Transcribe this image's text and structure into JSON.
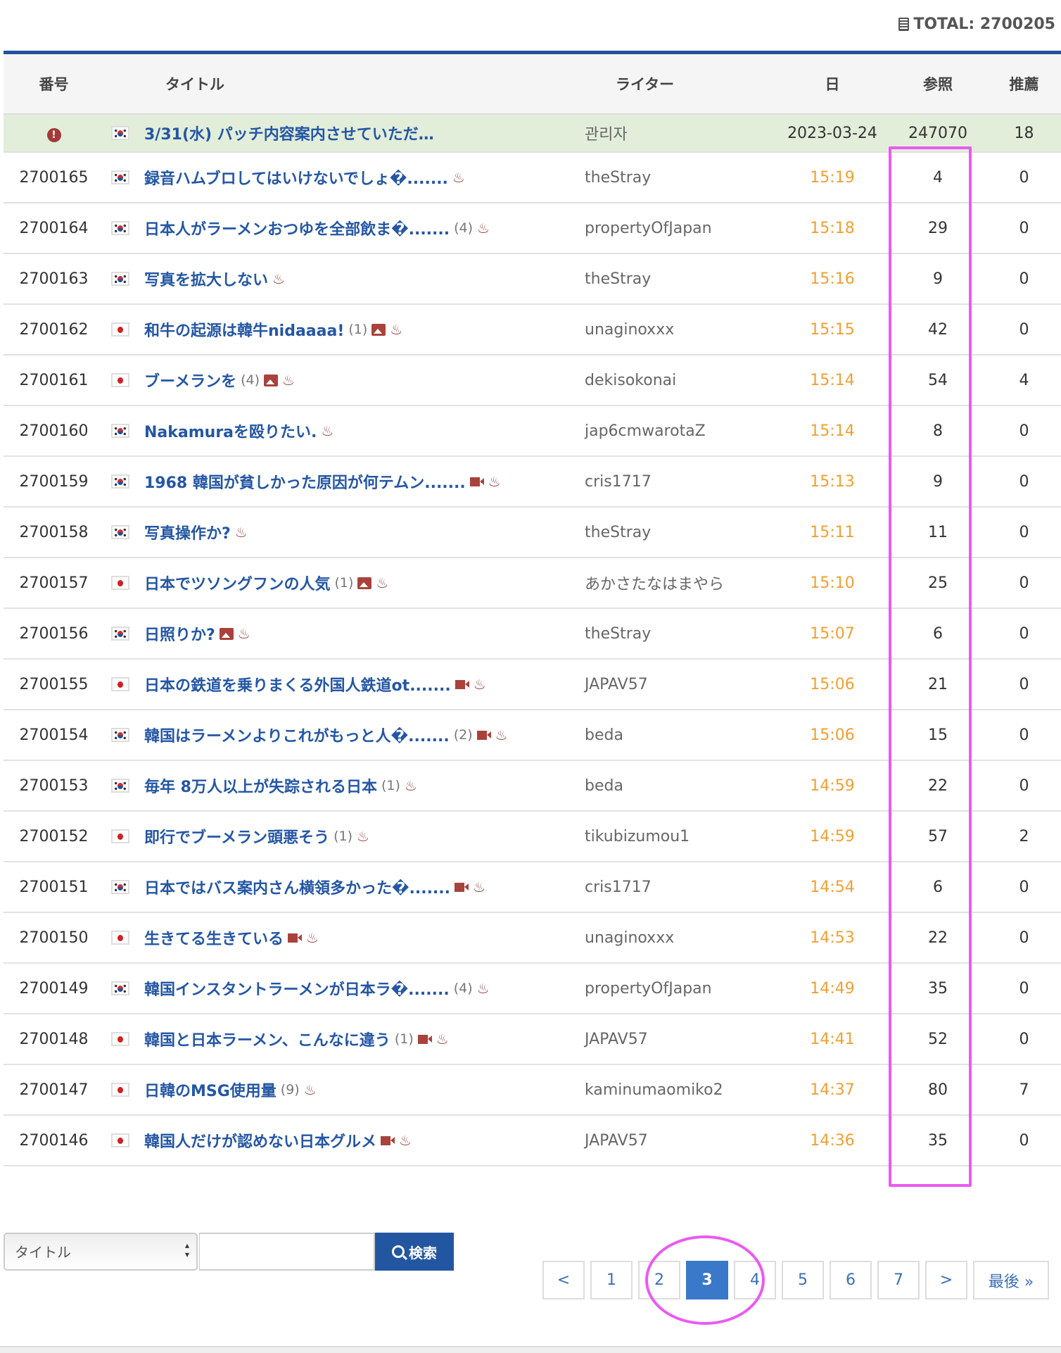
{
  "total": {
    "label": "TOTAL: 2700205",
    "icon": "list-icon"
  },
  "columns": {
    "no": "番号",
    "title": "タイトル",
    "writer": "ライター",
    "date": "日",
    "views": "参照",
    "rec": "推薦"
  },
  "notice": {
    "icon": "alert-icon",
    "flag": "kr",
    "title": "3/31(水) パッチ内容案内させていただ…",
    "writer": "관리자",
    "date": "2023-03-24",
    "views": "247070",
    "rec": "18"
  },
  "posts": [
    {
      "no": "2700165",
      "flag": "kr",
      "title": "録音ハムブロしてはいけないでしょ�.......",
      "comments": "",
      "media": [],
      "writer": "theStray",
      "date": "15:19",
      "views": "4",
      "rec": "0"
    },
    {
      "no": "2700164",
      "flag": "kr",
      "title": "日本人がラーメンおつゆを全部飲ま�.......",
      "comments": "(4)",
      "media": [],
      "writer": "propertyOfJapan",
      "date": "15:18",
      "views": "29",
      "rec": "0"
    },
    {
      "no": "2700163",
      "flag": "kr",
      "title": "写真を拡大しない",
      "comments": "",
      "media": [],
      "writer": "theStray",
      "date": "15:16",
      "views": "9",
      "rec": "0"
    },
    {
      "no": "2700162",
      "flag": "jp",
      "title": "和牛の起源は韓牛nidaaaa!",
      "comments": "(1)",
      "media": [
        "image"
      ],
      "writer": "unaginoxxx",
      "date": "15:15",
      "views": "42",
      "rec": "0"
    },
    {
      "no": "2700161",
      "flag": "jp",
      "title": "ブーメランを",
      "comments": "(4)",
      "media": [
        "image"
      ],
      "writer": "dekisokonai",
      "date": "15:14",
      "views": "54",
      "rec": "4"
    },
    {
      "no": "2700160",
      "flag": "kr",
      "title": "Nakamuraを殴りたい.",
      "comments": "",
      "media": [],
      "writer": "jap6cmwarotaZ",
      "date": "15:14",
      "views": "8",
      "rec": "0"
    },
    {
      "no": "2700159",
      "flag": "kr",
      "title": "1968 韓国が貧しかった原因が何テムン.......",
      "comments": "",
      "media": [
        "video"
      ],
      "writer": "cris1717",
      "date": "15:13",
      "views": "9",
      "rec": "0"
    },
    {
      "no": "2700158",
      "flag": "kr",
      "title": "写真操作か?",
      "comments": "",
      "media": [],
      "writer": "theStray",
      "date": "15:11",
      "views": "11",
      "rec": "0"
    },
    {
      "no": "2700157",
      "flag": "jp",
      "title": "日本でツソングフンの人気",
      "comments": "(1)",
      "media": [
        "image"
      ],
      "writer": "あかさたなはまやら",
      "date": "15:10",
      "views": "25",
      "rec": "0"
    },
    {
      "no": "2700156",
      "flag": "kr",
      "title": "日照りか?",
      "comments": "",
      "media": [
        "image"
      ],
      "writer": "theStray",
      "date": "15:07",
      "views": "6",
      "rec": "0"
    },
    {
      "no": "2700155",
      "flag": "jp",
      "title": "日本の鉄道を乗りまくる外国人鉄道ot.......",
      "comments": "",
      "media": [
        "video"
      ],
      "writer": "JAPAV57",
      "date": "15:06",
      "views": "21",
      "rec": "0"
    },
    {
      "no": "2700154",
      "flag": "kr",
      "title": "韓国はラーメンよりこれがもっと人�.......",
      "comments": "(2)",
      "media": [
        "video"
      ],
      "writer": "beda",
      "date": "15:06",
      "views": "15",
      "rec": "0"
    },
    {
      "no": "2700153",
      "flag": "kr",
      "title": "毎年 8万人以上が失踪される日本",
      "comments": "(1)",
      "media": [],
      "writer": "beda",
      "date": "14:59",
      "views": "22",
      "rec": "0"
    },
    {
      "no": "2700152",
      "flag": "jp",
      "title": "即行でブーメラン頭悪そう",
      "comments": "(1)",
      "media": [],
      "writer": "tikubizumou1",
      "date": "14:59",
      "views": "57",
      "rec": "2"
    },
    {
      "no": "2700151",
      "flag": "kr",
      "title": "日本ではバス案内さん横領多かった�.......",
      "comments": "",
      "media": [
        "video"
      ],
      "writer": "cris1717",
      "date": "14:54",
      "views": "6",
      "rec": "0"
    },
    {
      "no": "2700150",
      "flag": "jp",
      "title": "生きてる生きている",
      "comments": "",
      "media": [
        "video"
      ],
      "writer": "unaginoxxx",
      "date": "14:53",
      "views": "22",
      "rec": "0"
    },
    {
      "no": "2700149",
      "flag": "kr",
      "title": "韓国インスタントラーメンが日本ラ�.......",
      "comments": "(4)",
      "media": [],
      "writer": "propertyOfJapan",
      "date": "14:49",
      "views": "35",
      "rec": "0"
    },
    {
      "no": "2700148",
      "flag": "jp",
      "title": "韓国と日本ラーメン、こんなに違う",
      "comments": "(1)",
      "media": [
        "video"
      ],
      "writer": "JAPAV57",
      "date": "14:41",
      "views": "52",
      "rec": "0"
    },
    {
      "no": "2700147",
      "flag": "jp",
      "title": "日韓のMSG使用量",
      "comments": "(9)",
      "media": [],
      "writer": "kaminumaomiko2",
      "date": "14:37",
      "views": "80",
      "rec": "7"
    },
    {
      "no": "2700146",
      "flag": "jp",
      "title": "韓国人だけが認めない日本グルメ",
      "comments": "",
      "media": [
        "video"
      ],
      "writer": "JAPAV57",
      "date": "14:36",
      "views": "35",
      "rec": "0"
    }
  ],
  "search": {
    "field_selected": "タイトル",
    "query": "",
    "button_label": "検索",
    "button_icon": "search-icon"
  },
  "pagination": {
    "prev": "<",
    "pages": [
      "1",
      "2",
      "3",
      "4",
      "5",
      "6",
      "7"
    ],
    "current": "3",
    "next": ">",
    "last": "最後 »"
  },
  "colors": {
    "accent": "#23529c",
    "title_link": "#2456a4",
    "time": "#f0a032",
    "notice_bg": "#e2eeda",
    "highlight": "#ea5af0",
    "icon_red": "#a8433c"
  }
}
